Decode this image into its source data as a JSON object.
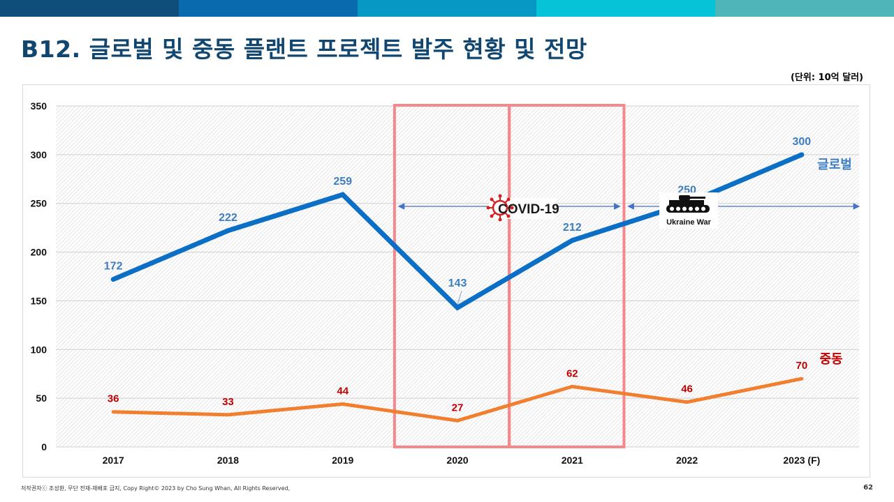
{
  "header": {
    "title": "B12. 글로벌 및 중동 플랜트 프로젝트 발주 현황 및 전망",
    "unit_label": "(단위: 10억 달러)",
    "bar_colors": [
      "#0f4d7a",
      "#0a6aae",
      "#0898c4",
      "#06c3d8",
      "#4fb5b9"
    ]
  },
  "footer": {
    "copyright": "저작권자ⓒ 조성환, 무단 전재-재배포 금지, Copy Right© 2023 by Cho Sung Whan, All Rights Reserved,",
    "page": "62"
  },
  "annotations": {
    "covid": "COVID-19",
    "war": "Ukraine War"
  },
  "chart_data": {
    "type": "line",
    "categories": [
      "2017",
      "2018",
      "2019",
      "2020",
      "2021",
      "2022",
      "2023 (F)"
    ],
    "ylim": [
      0,
      350
    ],
    "yticks": [
      0,
      50,
      100,
      150,
      200,
      250,
      300,
      350
    ],
    "series": [
      {
        "name": "글로벌",
        "color": "#0b6fc6",
        "label_color": "#3d7ec2",
        "values": [
          172,
          222,
          259,
          143,
          212,
          250,
          300
        ]
      },
      {
        "name": "중동",
        "color": "#f07f2f",
        "label_color": "#c00000",
        "values": [
          36,
          33,
          44,
          27,
          62,
          46,
          70
        ]
      }
    ],
    "highlight_colors": {
      "covid_box": "#f4888b",
      "arrow": "#4472c4"
    }
  }
}
